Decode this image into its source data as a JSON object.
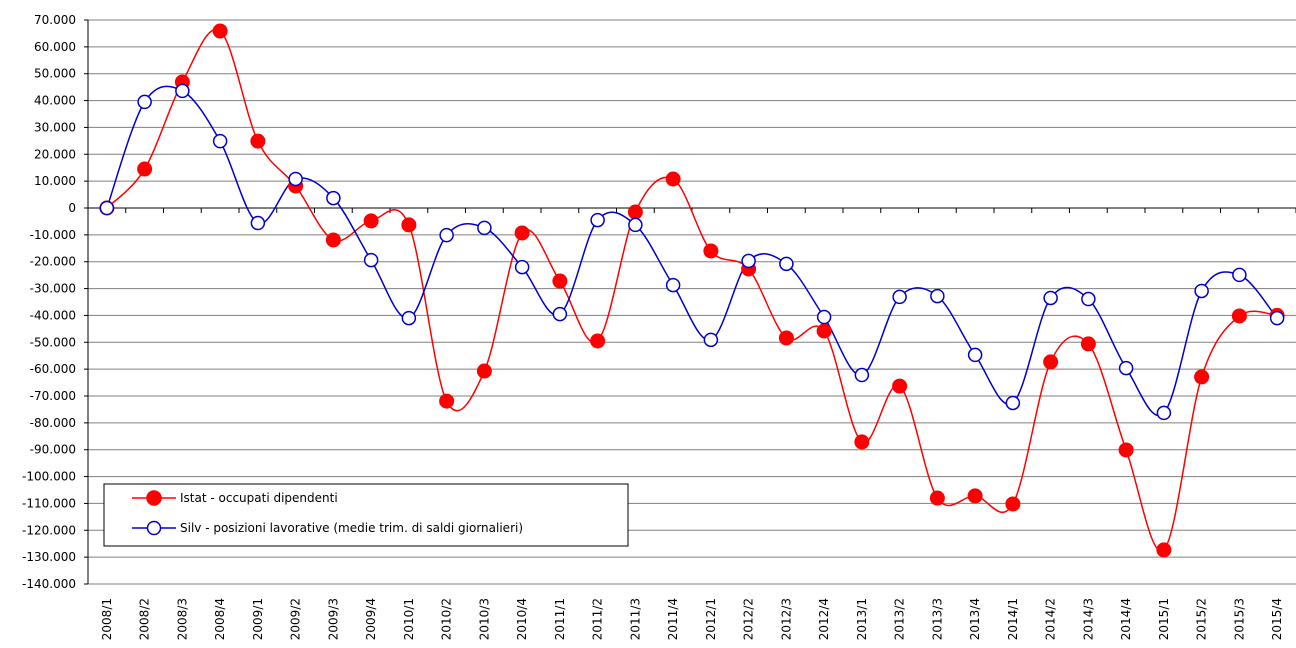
{
  "chart_data": {
    "type": "line",
    "categories": [
      "2008/1",
      "2008/2",
      "2008/3",
      "2008/4",
      "2009/1",
      "2009/2",
      "2009/3",
      "2009/4",
      "2010/1",
      "2010/2",
      "2010/3",
      "2010/4",
      "2011/1",
      "2011/2",
      "2011/3",
      "2011/4",
      "2012/1",
      "2012/2",
      "2012/3",
      "2012/4",
      "2013/1",
      "2013/2",
      "2013/3",
      "2013/4",
      "2014/1",
      "2014/2",
      "2014/3",
      "2014/4",
      "2015/1",
      "2015/2",
      "2015/3",
      "2015/4"
    ],
    "series": [
      {
        "name": "Istat - occupati dipendenti",
        "color": "#ff0000",
        "marker": "filled",
        "values": [
          0,
          14500,
          46900,
          65900,
          24900,
          8200,
          -11900,
          -4800,
          -6300,
          -71900,
          -60700,
          -9300,
          -27200,
          -49500,
          -1500,
          10800,
          -16000,
          -22700,
          -48400,
          -45800,
          -87100,
          -66300,
          -108000,
          -107200,
          -110200,
          -57300,
          -50600,
          -90100,
          -127300,
          -62900,
          -40200,
          -40000
        ]
      },
      {
        "name": "Silv - posizioni lavorative (medie trim. di saldi giornalieri)",
        "color": "#0000cc",
        "marker": "open",
        "values": [
          0,
          39500,
          43600,
          24900,
          -5600,
          10800,
          3700,
          -19400,
          -41000,
          -10100,
          -7400,
          -22000,
          -39500,
          -4500,
          -6300,
          -28700,
          -49100,
          -19700,
          -20800,
          -40600,
          -62200,
          -33100,
          -32800,
          -54700,
          -72600,
          -33500,
          -33900,
          -59600,
          -76300,
          -30900,
          -24900,
          -41000
        ]
      }
    ],
    "ylim": [
      -140000,
      70000
    ],
    "yticks": [
      {
        "value": 70000,
        "label": "70.000"
      },
      {
        "value": 60000,
        "label": "60.000"
      },
      {
        "value": 50000,
        "label": "50.000"
      },
      {
        "value": 40000,
        "label": "40.000"
      },
      {
        "value": 30000,
        "label": "30.000"
      },
      {
        "value": 20000,
        "label": "20.000"
      },
      {
        "value": 10000,
        "label": "10.000"
      },
      0,
      {
        "value": -10000,
        "label": "-10.000"
      },
      {
        "value": -20000,
        "label": "-20.000"
      },
      {
        "value": -30000,
        "label": "-30.000"
      },
      {
        "value": -40000,
        "label": "-40.000"
      },
      {
        "value": -50000,
        "label": "-50.000"
      },
      {
        "value": -60000,
        "label": "-60.000"
      },
      {
        "value": -70000,
        "label": "-70.000"
      },
      {
        "value": -80000,
        "label": "-80.000"
      },
      {
        "value": -90000,
        "label": "-90.000"
      },
      {
        "value": -100000,
        "label": "-100.000"
      },
      {
        "value": -110000,
        "label": "-110.000"
      },
      {
        "value": -120000,
        "label": "-120.000"
      },
      {
        "value": -130000,
        "label": "-130.000"
      },
      {
        "value": -140000,
        "label": "-140.000"
      }
    ],
    "grid": true,
    "legend": "lower left",
    "smooth": true
  }
}
